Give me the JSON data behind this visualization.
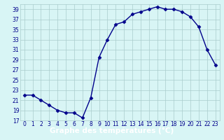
{
  "x": [
    0,
    1,
    2,
    3,
    4,
    5,
    6,
    7,
    8,
    9,
    10,
    11,
    12,
    13,
    14,
    15,
    16,
    17,
    18,
    19,
    20,
    21,
    22,
    23
  ],
  "y": [
    22,
    22,
    21,
    20,
    19,
    18.5,
    18.5,
    17.5,
    21.5,
    29.5,
    33,
    36,
    36.5,
    38,
    38.5,
    39,
    39.5,
    39,
    39,
    38.5,
    37.5,
    35.5,
    31,
    28
  ],
  "line_color": "#00008b",
  "marker": "D",
  "marker_size": 2.5,
  "bg_color": "#d8f5f5",
  "grid_color": "#aacccc",
  "xlabel": "Graphe des températures (°C)",
  "xlabel_bg": "#2244bb",
  "xlabel_color": "#ffffff",
  "ylim": [
    17,
    40
  ],
  "xlim": [
    -0.5,
    23.5
  ],
  "yticks": [
    17,
    19,
    21,
    23,
    25,
    27,
    29,
    31,
    33,
    35,
    37,
    39
  ],
  "xticks": [
    0,
    1,
    2,
    3,
    4,
    5,
    6,
    7,
    8,
    9,
    10,
    11,
    12,
    13,
    14,
    15,
    16,
    17,
    18,
    19,
    20,
    21,
    22,
    23
  ],
  "tick_label_color": "#00008b",
  "tick_label_size": 5.5,
  "xlabel_fontsize": 7.5,
  "linewidth": 1.0
}
